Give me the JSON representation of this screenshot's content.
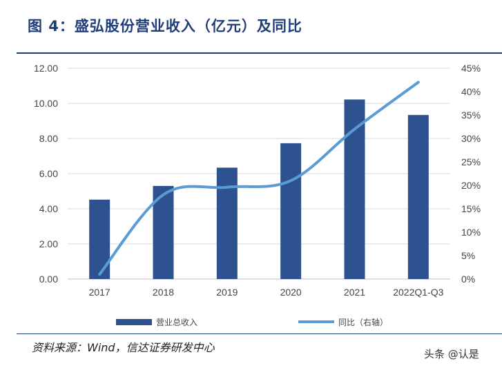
{
  "title": "图 4：盛弘股份营业收入（亿元）及同比",
  "source": "资料来源：Wind，信达证券研发中心",
  "watermark": "头条 @认是",
  "colors": {
    "bar": "#2e5190",
    "line": "#5b9bd5",
    "title": "#1f3d7a",
    "grid": "#d9d9d9"
  },
  "chart_data": {
    "type": "bar",
    "categories": [
      "2017",
      "2018",
      "2019",
      "2020",
      "2021",
      "2022Q1-Q3"
    ],
    "series": [
      {
        "name": "营业总收入",
        "type": "bar",
        "axis": "left",
        "values": [
          4.52,
          5.3,
          6.34,
          7.73,
          10.22,
          9.34
        ]
      },
      {
        "name": "同比（右轴）",
        "type": "line",
        "axis": "right",
        "values": [
          1.0,
          18.0,
          19.6,
          21.0,
          32.0,
          42.0
        ]
      }
    ],
    "ylim_left": [
      0,
      12
    ],
    "yticks_left": [
      "0.00",
      "2.00",
      "4.00",
      "6.00",
      "8.00",
      "10.00",
      "12.00"
    ],
    "ylim_right": [
      0,
      45
    ],
    "yticks_right": [
      "0%",
      "5%",
      "10%",
      "15%",
      "20%",
      "25%",
      "30%",
      "35%",
      "40%",
      "45%"
    ],
    "grid": "horizontal",
    "legend": "bottom"
  }
}
